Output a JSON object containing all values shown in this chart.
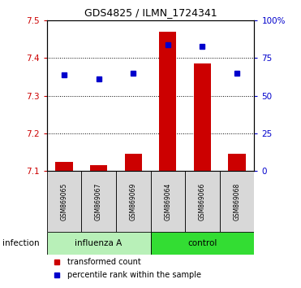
{
  "title": "GDS4825 / ILMN_1724341",
  "samples": [
    "GSM869065",
    "GSM869067",
    "GSM869069",
    "GSM869064",
    "GSM869066",
    "GSM869068"
  ],
  "red_values": [
    7.125,
    7.115,
    7.145,
    7.47,
    7.385,
    7.145
  ],
  "blue_values": [
    7.355,
    7.345,
    7.36,
    7.435,
    7.43,
    7.36
  ],
  "ylim_left": [
    7.1,
    7.5
  ],
  "ylim_right": [
    0,
    100
  ],
  "yticks_left": [
    7.1,
    7.2,
    7.3,
    7.4,
    7.5
  ],
  "yticks_right": [
    0,
    25,
    50,
    75,
    100
  ],
  "ytick_labels_right": [
    "0",
    "25",
    "50",
    "75",
    "100%"
  ],
  "group_labels": [
    "influenza A",
    "control"
  ],
  "group_color_light": "#b8f0b8",
  "group_color_dark": "#33dd33",
  "group_label_text": "infection",
  "bar_color": "#CC0000",
  "point_color": "#0000CC",
  "bar_bottom": 7.1,
  "legend_red_label": "transformed count",
  "legend_blue_label": "percentile rank within the sample",
  "sample_box_color": "#d8d8d8",
  "grid_dotted_at": [
    7.2,
    7.3,
    7.4
  ]
}
